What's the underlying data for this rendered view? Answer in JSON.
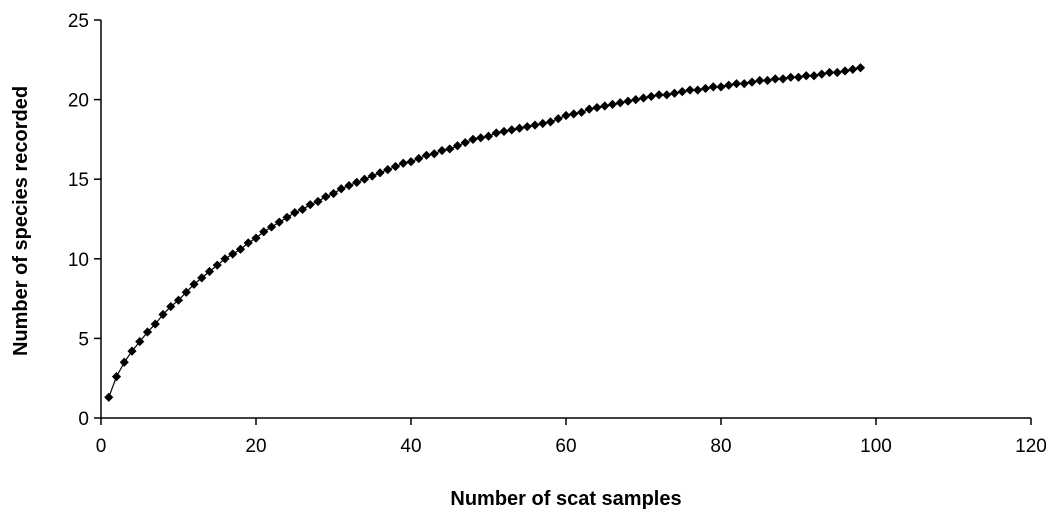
{
  "chart_data": {
    "type": "line",
    "title": "",
    "xlabel": "Number of scat samples",
    "ylabel": "Number of species recorded",
    "xlim": [
      0,
      120
    ],
    "ylim": [
      0,
      25
    ],
    "xticks": [
      "0",
      "20",
      "40",
      "60",
      "80",
      "100",
      "120"
    ],
    "yticks": [
      "0",
      "5",
      "10",
      "15",
      "20",
      "25"
    ],
    "grid": false,
    "legend": "none",
    "marker": "diamond",
    "series_color": "#000000",
    "series": [
      {
        "x": [
          1,
          2,
          3,
          4,
          5,
          6,
          7,
          8,
          9,
          10,
          11,
          12,
          13,
          14,
          15,
          16,
          17,
          18,
          19,
          20,
          21,
          22,
          23,
          24,
          25,
          26,
          27,
          28,
          29,
          30,
          31,
          32,
          33,
          34,
          35,
          36,
          37,
          38,
          39,
          40,
          41,
          42,
          43,
          44,
          45,
          46,
          47,
          48,
          49,
          50,
          51,
          52,
          53,
          54,
          55,
          56,
          57,
          58,
          59,
          60,
          61,
          62,
          63,
          64,
          65,
          66,
          67,
          68,
          69,
          70,
          71,
          72,
          73,
          74,
          75,
          76,
          77,
          78,
          79,
          80,
          81,
          82,
          83,
          84,
          85,
          86,
          87,
          88,
          89,
          90,
          91,
          92,
          93,
          94,
          95,
          96,
          97,
          98
        ],
        "values": [
          1.3,
          2.6,
          3.5,
          4.2,
          4.8,
          5.4,
          5.9,
          6.5,
          7.0,
          7.4,
          7.9,
          8.4,
          8.8,
          9.2,
          9.6,
          10.0,
          10.3,
          10.6,
          11.0,
          11.3,
          11.7,
          12.0,
          12.3,
          12.6,
          12.9,
          13.1,
          13.4,
          13.6,
          13.9,
          14.1,
          14.4,
          14.6,
          14.8,
          15.0,
          15.2,
          15.4,
          15.6,
          15.8,
          16.0,
          16.1,
          16.3,
          16.5,
          16.6,
          16.8,
          16.9,
          17.1,
          17.3,
          17.5,
          17.6,
          17.7,
          17.9,
          18.0,
          18.1,
          18.2,
          18.3,
          18.4,
          18.5,
          18.6,
          18.8,
          19.0,
          19.1,
          19.2,
          19.4,
          19.5,
          19.6,
          19.7,
          19.8,
          19.9,
          20.0,
          20.1,
          20.2,
          20.3,
          20.3,
          20.4,
          20.5,
          20.6,
          20.6,
          20.7,
          20.8,
          20.8,
          20.9,
          21.0,
          21.0,
          21.1,
          21.2,
          21.2,
          21.3,
          21.3,
          21.4,
          21.4,
          21.5,
          21.5,
          21.6,
          21.7,
          21.7,
          21.8,
          21.9,
          22.0
        ]
      }
    ]
  }
}
